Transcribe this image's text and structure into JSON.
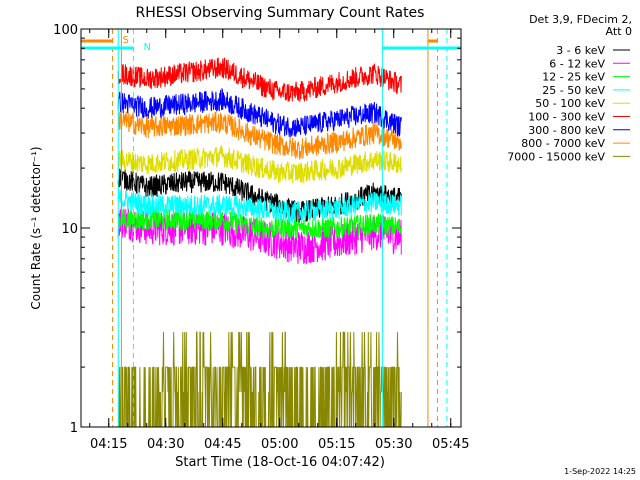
{
  "chart_data": {
    "type": "line",
    "title": "RHESSI Observing Summary Count Rates",
    "xlabel": "Start Time (18-Oct-16 04:07:42)",
    "ylabel": "Count Rate (s⁻¹ detector⁻¹)",
    "yscale": "log",
    "ylim": [
      1,
      100
    ],
    "xlim": [
      "04:07:42",
      "05:47:42"
    ],
    "x_ticks": [
      "04:15",
      "04:30",
      "04:45",
      "05:00",
      "05:15",
      "05:30",
      "05:45"
    ],
    "y_ticks": [
      "1",
      "10",
      "100"
    ],
    "legend_header": [
      "Det 3,9, FDecim 2,",
      "Att 0"
    ],
    "legend_position": "right",
    "footer": "1-Sep-2022 14:25",
    "data_window": {
      "start": "04:17:30",
      "end": "05:32:00"
    },
    "series": [
      {
        "name": "3 - 6 keV",
        "color": "#000000",
        "x": [
          "04:18",
          "04:25",
          "04:35",
          "04:45",
          "04:55",
          "05:00",
          "05:05",
          "05:15",
          "05:25",
          "05:32"
        ],
        "values": [
          18,
          16,
          17,
          17,
          14,
          13,
          12,
          13,
          15,
          14
        ]
      },
      {
        "name": "6 - 12 keV",
        "color": "#ff00ff",
        "x": [
          "04:18",
          "04:25",
          "04:35",
          "04:45",
          "04:55",
          "05:00",
          "05:05",
          "05:15",
          "05:25",
          "05:32"
        ],
        "values": [
          11,
          10,
          10,
          10,
          9,
          8.5,
          8,
          8.5,
          9.5,
          9
        ]
      },
      {
        "name": "12 - 25 keV",
        "color": "#00ff00",
        "x": [
          "04:18",
          "04:25",
          "04:35",
          "04:45",
          "04:55",
          "05:00",
          "05:05",
          "05:15",
          "05:25",
          "05:32"
        ],
        "values": [
          11,
          11,
          11,
          11,
          10,
          10,
          10,
          10,
          10.5,
          10
        ]
      },
      {
        "name": "25 - 50 keV",
        "color": "#00ffff",
        "x": [
          "04:18",
          "04:25",
          "04:35",
          "04:45",
          "04:55",
          "05:00",
          "05:05",
          "05:15",
          "05:25",
          "05:32"
        ],
        "values": [
          14,
          13,
          13,
          13,
          12.5,
          12,
          12,
          12.5,
          13.5,
          13
        ]
      },
      {
        "name": "50 - 100 keV",
        "color": "#dddd00",
        "x": [
          "04:18",
          "04:25",
          "04:35",
          "04:45",
          "04:55",
          "05:00",
          "05:05",
          "05:15",
          "05:25",
          "05:32"
        ],
        "values": [
          22,
          21,
          22,
          23,
          20,
          19,
          19,
          20,
          22,
          21
        ]
      },
      {
        "name": "100 - 300 keV",
        "color": "#ff0000",
        "x": [
          "04:18",
          "04:25",
          "04:35",
          "04:45",
          "04:55",
          "05:00",
          "05:05",
          "05:15",
          "05:25",
          "05:32"
        ],
        "values": [
          60,
          56,
          60,
          64,
          52,
          48,
          48,
          54,
          60,
          52
        ]
      },
      {
        "name": "300 - 800 keV",
        "color": "#0000ff",
        "x": [
          "04:18",
          "04:25",
          "04:35",
          "04:45",
          "04:55",
          "05:00",
          "05:05",
          "05:15",
          "05:25",
          "05:32"
        ],
        "values": [
          43,
          40,
          42,
          44,
          36,
          33,
          32,
          35,
          38,
          32
        ]
      },
      {
        "name": "800 - 7000 keV",
        "color": "#ff8800",
        "x": [
          "04:18",
          "04:25",
          "04:35",
          "04:45",
          "04:55",
          "05:00",
          "05:05",
          "05:15",
          "05:25",
          "05:32"
        ],
        "values": [
          35,
          32,
          33,
          34,
          28,
          26,
          25,
          27,
          30,
          27
        ]
      },
      {
        "name": "7000 - 15000 keV",
        "color": "#888800",
        "x": [
          "04:18",
          "04:25",
          "04:35",
          "04:45",
          "04:55",
          "05:00",
          "05:05",
          "05:15",
          "05:25",
          "05:32"
        ],
        "values": [
          1.5,
          1.5,
          1.7,
          2.0,
          1.3,
          1.2,
          1.2,
          1.5,
          1.9,
          1.5
        ]
      }
    ],
    "annotations": [
      {
        "label": "S",
        "color": "#ff8800",
        "x_start": "04:07:42",
        "x_end": "04:16:00",
        "level": 90
      },
      {
        "label": "N",
        "color": "#00ffff",
        "x_start": "04:07:42",
        "x_end": "04:21:30",
        "level": 80
      },
      {
        "label": "",
        "color": "#ff8800",
        "x_start": "05:39:00",
        "x_end": "05:41:30",
        "level": 90
      },
      {
        "label": "",
        "color": "#00ffff",
        "x_start": "05:27:00",
        "x_end": "05:47:42",
        "level": 80
      }
    ],
    "markers": [
      {
        "x": "04:16:00",
        "color": "#ff8800",
        "style": "dashed"
      },
      {
        "x": "04:18:20",
        "color": "#ff8800",
        "style": "solid"
      },
      {
        "x": "04:17:30",
        "color": "#00ffff",
        "style": "solid"
      },
      {
        "x": "04:21:30",
        "color": "#00ffff",
        "style": "dashed"
      },
      {
        "x": "05:27:00",
        "color": "#00ffff",
        "style": "solid"
      },
      {
        "x": "05:39:00",
        "color": "#ff8800",
        "style": "solid"
      },
      {
        "x": "05:41:30",
        "color": "#ff8800",
        "style": "dashed"
      },
      {
        "x": "05:44:00",
        "color": "#00ffff",
        "style": "dashed"
      }
    ]
  }
}
